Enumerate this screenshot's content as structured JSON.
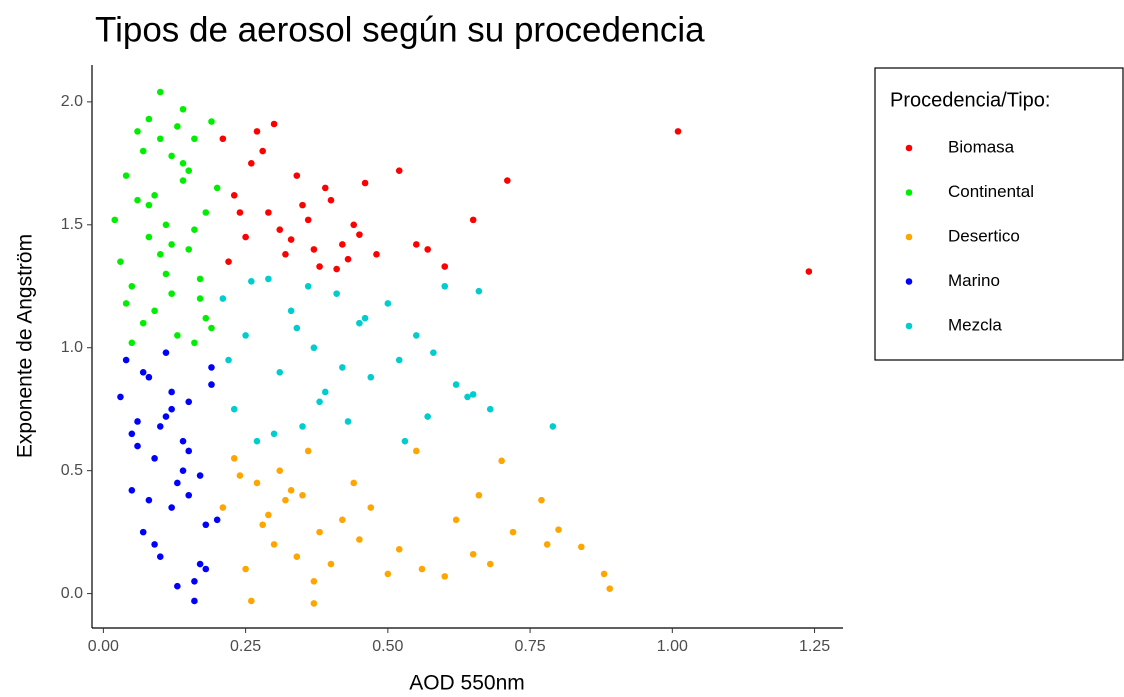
{
  "chart_data": {
    "type": "scatter",
    "title": "Tipos de aerosol según su procedencia",
    "x_label": "AOD 550nm",
    "y_label": "Exponente de Angström",
    "legend_title": "Procedencia/Tipo:",
    "legend_position": "right",
    "grid": false,
    "xlim": [
      -0.02,
      1.3
    ],
    "ylim": [
      -0.14,
      2.15
    ],
    "xticks": [
      {
        "value": 0,
        "label": "0.00"
      },
      {
        "value": 0.25,
        "label": "0.25"
      },
      {
        "value": 0.5,
        "label": "0.50"
      },
      {
        "value": 0.75,
        "label": "0.75"
      },
      {
        "value": 1,
        "label": "1.00"
      },
      {
        "value": 1.25,
        "label": "1.25"
      }
    ],
    "yticks": [
      {
        "value": 0,
        "label": "0.0"
      },
      0.5,
      {
        "value": 1,
        "label": "1.0"
      },
      1.5,
      {
        "value": 2,
        "label": "2.0"
      }
    ],
    "series": [
      {
        "name": "Biomasa",
        "color": "#ff0000",
        "x": [
          0.21,
          0.23,
          0.25,
          0.27,
          0.29,
          0.3,
          0.32,
          0.34,
          0.36,
          0.38,
          0.4,
          0.42,
          0.44,
          0.46,
          0.22,
          0.26,
          0.31,
          0.35,
          0.39,
          0.43,
          0.28,
          0.33,
          0.37,
          0.24,
          0.41,
          0.45,
          0.52,
          0.57,
          0.6,
          0.65,
          0.71,
          1.01,
          1.24,
          0.55,
          0.48
        ],
        "values": [
          1.85,
          1.62,
          1.45,
          1.88,
          1.55,
          1.91,
          1.38,
          1.7,
          1.52,
          1.33,
          1.6,
          1.42,
          1.5,
          1.67,
          1.35,
          1.75,
          1.48,
          1.58,
          1.65,
          1.36,
          1.8,
          1.44,
          1.4,
          1.55,
          1.32,
          1.46,
          1.72,
          1.4,
          1.33,
          1.52,
          1.68,
          1.88,
          1.31,
          1.42,
          1.38
        ]
      },
      {
        "name": "Continental",
        "color": "#00ee00",
        "x": [
          0.02,
          0.04,
          0.05,
          0.06,
          0.07,
          0.08,
          0.09,
          0.1,
          0.11,
          0.12,
          0.13,
          0.14,
          0.15,
          0.16,
          0.17,
          0.18,
          0.19,
          0.2,
          0.03,
          0.05,
          0.07,
          0.09,
          0.11,
          0.13,
          0.15,
          0.17,
          0.19,
          0.06,
          0.08,
          0.1,
          0.12,
          0.14,
          0.16,
          0.18,
          0.1,
          0.14,
          0.08,
          0.12,
          0.16,
          0.04
        ],
        "values": [
          1.52,
          1.7,
          1.25,
          1.88,
          1.1,
          1.45,
          1.62,
          2.04,
          1.3,
          1.78,
          1.05,
          1.97,
          1.4,
          1.85,
          1.2,
          1.55,
          1.92,
          1.65,
          1.35,
          1.02,
          1.8,
          1.15,
          1.5,
          1.9,
          1.72,
          1.28,
          1.08,
          1.6,
          1.93,
          1.38,
          1.22,
          1.68,
          1.48,
          1.12,
          1.85,
          1.75,
          1.58,
          1.42,
          1.02,
          1.18
        ]
      },
      {
        "name": "Desertico",
        "color": "#ffa500",
        "x": [
          0.21,
          0.23,
          0.25,
          0.26,
          0.27,
          0.28,
          0.3,
          0.31,
          0.32,
          0.34,
          0.35,
          0.36,
          0.37,
          0.38,
          0.4,
          0.42,
          0.44,
          0.45,
          0.47,
          0.5,
          0.52,
          0.55,
          0.56,
          0.6,
          0.62,
          0.65,
          0.66,
          0.68,
          0.7,
          0.72,
          0.77,
          0.78,
          0.8,
          0.84,
          0.88,
          0.89,
          0.24,
          0.29,
          0.33,
          0.37
        ],
        "values": [
          0.35,
          0.55,
          0.1,
          -0.03,
          0.45,
          0.28,
          0.2,
          0.5,
          0.38,
          0.15,
          0.4,
          0.58,
          -0.04,
          0.25,
          0.12,
          0.3,
          0.45,
          0.22,
          0.35,
          0.08,
          0.18,
          0.58,
          0.1,
          0.07,
          0.3,
          0.16,
          0.4,
          0.12,
          0.54,
          0.25,
          0.38,
          0.2,
          0.26,
          0.19,
          0.08,
          0.02,
          0.48,
          0.32,
          0.42,
          0.05
        ]
      },
      {
        "name": "Marino",
        "color": "#0000ff",
        "x": [
          0.03,
          0.04,
          0.05,
          0.06,
          0.07,
          0.08,
          0.09,
          0.1,
          0.11,
          0.12,
          0.13,
          0.14,
          0.15,
          0.16,
          0.17,
          0.18,
          0.19,
          0.2,
          0.05,
          0.07,
          0.09,
          0.11,
          0.13,
          0.15,
          0.17,
          0.19,
          0.08,
          0.12,
          0.16,
          0.1,
          0.14,
          0.18,
          0.06,
          0.12,
          0.15
        ],
        "values": [
          0.8,
          0.95,
          0.42,
          0.7,
          0.25,
          0.88,
          0.55,
          0.15,
          0.98,
          0.35,
          0.03,
          0.62,
          0.78,
          -0.03,
          0.48,
          0.1,
          0.85,
          0.3,
          0.65,
          0.9,
          0.2,
          0.72,
          0.45,
          0.58,
          0.12,
          0.92,
          0.38,
          0.82,
          0.05,
          0.68,
          0.5,
          0.28,
          0.6,
          0.75,
          0.4
        ]
      },
      {
        "name": "Mezcla",
        "color": "#00cdcd",
        "x": [
          0.21,
          0.23,
          0.25,
          0.27,
          0.29,
          0.31,
          0.33,
          0.35,
          0.37,
          0.39,
          0.41,
          0.43,
          0.45,
          0.47,
          0.5,
          0.52,
          0.55,
          0.57,
          0.6,
          0.62,
          0.64,
          0.66,
          0.68,
          0.79,
          0.22,
          0.26,
          0.3,
          0.34,
          0.38,
          0.42,
          0.46,
          0.53,
          0.58,
          0.65,
          0.36
        ],
        "values": [
          1.2,
          0.75,
          1.05,
          0.62,
          1.28,
          0.9,
          1.15,
          0.68,
          1.0,
          0.82,
          1.22,
          0.7,
          1.1,
          0.88,
          1.18,
          0.95,
          1.05,
          0.72,
          1.25,
          0.85,
          0.8,
          1.23,
          0.75,
          0.68,
          0.95,
          1.27,
          0.65,
          1.08,
          0.78,
          0.92,
          1.12,
          0.62,
          0.98,
          0.81,
          1.25
        ]
      }
    ]
  }
}
